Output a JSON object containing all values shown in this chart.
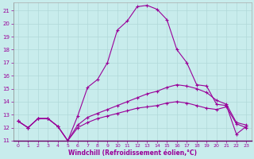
{
  "xlabel": "Windchill (Refroidissement éolien,°C)",
  "xlim": [
    -0.5,
    23.5
  ],
  "ylim": [
    11,
    21.6
  ],
  "yticks": [
    11,
    12,
    13,
    14,
    15,
    16,
    17,
    18,
    19,
    20,
    21
  ],
  "xticks": [
    0,
    1,
    2,
    3,
    4,
    5,
    6,
    7,
    8,
    9,
    10,
    11,
    12,
    13,
    14,
    15,
    16,
    17,
    18,
    19,
    20,
    21,
    22,
    23
  ],
  "background_color": "#c8ecec",
  "line_color": "#990099",
  "grid_color": "#b0d8d8",
  "series": [
    {
      "x": [
        0,
        1,
        2,
        3,
        4,
        5,
        6,
        7,
        8,
        9,
        10,
        11,
        12,
        13,
        14,
        15,
        16,
        17,
        18,
        19,
        20,
        21,
        22,
        23
      ],
      "y": [
        12.5,
        12.0,
        12.7,
        12.7,
        12.1,
        11.0,
        12.9,
        15.1,
        15.7,
        17.0,
        19.5,
        20.2,
        21.3,
        21.4,
        21.1,
        20.3,
        18.0,
        17.0,
        15.3,
        15.2,
        13.8,
        13.7,
        11.5,
        12.1
      ]
    },
    {
      "x": [
        0,
        1,
        2,
        3,
        4,
        5,
        6,
        7,
        8,
        9,
        10,
        11,
        12,
        13,
        14,
        15,
        16,
        17,
        18,
        19,
        20,
        21,
        22,
        23
      ],
      "y": [
        12.5,
        12.0,
        12.7,
        12.7,
        12.1,
        11.0,
        12.2,
        12.8,
        13.1,
        13.4,
        13.7,
        14.0,
        14.3,
        14.6,
        14.8,
        15.1,
        15.3,
        15.2,
        15.0,
        14.7,
        14.1,
        13.8,
        12.4,
        12.2
      ]
    },
    {
      "x": [
        0,
        1,
        2,
        3,
        4,
        5,
        6,
        7,
        8,
        9,
        10,
        11,
        12,
        13,
        14,
        15,
        16,
        17,
        18,
        19,
        20,
        21,
        22,
        23
      ],
      "y": [
        12.5,
        12.0,
        12.7,
        12.7,
        12.1,
        11.0,
        12.0,
        12.4,
        12.7,
        12.9,
        13.1,
        13.3,
        13.5,
        13.6,
        13.7,
        13.9,
        14.0,
        13.9,
        13.7,
        13.5,
        13.4,
        13.6,
        12.3,
        12.0
      ]
    }
  ]
}
